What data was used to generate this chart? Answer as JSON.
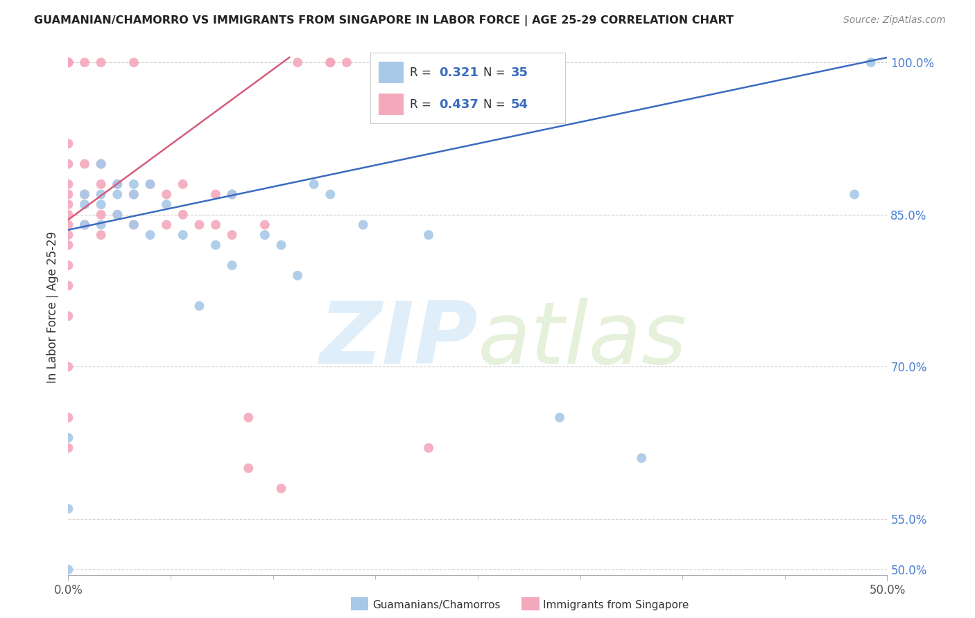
{
  "title": "GUAMANIAN/CHAMORRO VS IMMIGRANTS FROM SINGAPORE IN LABOR FORCE | AGE 25-29 CORRELATION CHART",
  "source": "Source: ZipAtlas.com",
  "ylabel": "In Labor Force | Age 25-29",
  "xmin": 0.0,
  "xmax": 0.5,
  "ymin": 0.495,
  "ymax": 1.022,
  "ytick_positions": [
    0.5,
    0.55,
    0.7,
    0.85,
    1.0
  ],
  "ytick_labels": [
    "50.0%",
    "55.0%",
    "70.0%",
    "85.0%",
    "100.0%"
  ],
  "xtick_positions": [
    0.0,
    0.5
  ],
  "xtick_labels": [
    "0.0%",
    "50.0%"
  ],
  "blue_R": 0.321,
  "blue_N": 35,
  "pink_R": 0.437,
  "pink_N": 54,
  "blue_color": "#a8c8e8",
  "pink_color": "#f4a8bc",
  "blue_line_color": "#3a6bbf",
  "pink_line_color": "#d45c7a",
  "legend_label_blue": "Guamanians/Chamorros",
  "legend_label_pink": "Immigrants from Singapore",
  "background_color": "#ffffff",
  "grid_color": "#cccccc",
  "blue_scatter_x": [
    0.0,
    0.0,
    0.0,
    0.01,
    0.01,
    0.01,
    0.02,
    0.02,
    0.02,
    0.02,
    0.03,
    0.03,
    0.03,
    0.04,
    0.04,
    0.04,
    0.05,
    0.05,
    0.06,
    0.07,
    0.08,
    0.09,
    0.1,
    0.1,
    0.12,
    0.13,
    0.14,
    0.15,
    0.16,
    0.18,
    0.22,
    0.3,
    0.35,
    0.48,
    0.49
  ],
  "blue_scatter_y": [
    0.5,
    0.56,
    0.63,
    0.84,
    0.86,
    0.87,
    0.84,
    0.86,
    0.87,
    0.9,
    0.85,
    0.87,
    0.88,
    0.84,
    0.87,
    0.88,
    0.83,
    0.88,
    0.86,
    0.83,
    0.76,
    0.82,
    0.8,
    0.87,
    0.83,
    0.82,
    0.79,
    0.88,
    0.87,
    0.84,
    0.83,
    0.65,
    0.61,
    0.87,
    1.0
  ],
  "pink_scatter_x": [
    0.0,
    0.0,
    0.0,
    0.0,
    0.0,
    0.0,
    0.0,
    0.0,
    0.0,
    0.0,
    0.0,
    0.0,
    0.0,
    0.0,
    0.0,
    0.0,
    0.0,
    0.0,
    0.0,
    0.0,
    0.01,
    0.01,
    0.01,
    0.01,
    0.02,
    0.02,
    0.02,
    0.02,
    0.02,
    0.03,
    0.03,
    0.04,
    0.04,
    0.04,
    0.05,
    0.06,
    0.06,
    0.07,
    0.07,
    0.08,
    0.09,
    0.09,
    0.1,
    0.1,
    0.11,
    0.11,
    0.12,
    0.13,
    0.14,
    0.16,
    0.16,
    0.17,
    0.2,
    0.22
  ],
  "pink_scatter_y": [
    0.62,
    0.65,
    0.7,
    0.75,
    0.78,
    0.8,
    0.82,
    0.83,
    0.84,
    0.85,
    0.86,
    0.87,
    0.88,
    0.9,
    0.92,
    1.0,
    1.0,
    1.0,
    1.0,
    1.0,
    0.84,
    0.87,
    0.9,
    1.0,
    0.83,
    0.85,
    0.88,
    0.9,
    1.0,
    0.85,
    0.88,
    0.84,
    0.87,
    1.0,
    0.88,
    0.84,
    0.87,
    0.85,
    0.88,
    0.84,
    0.84,
    0.87,
    0.83,
    0.87,
    0.65,
    0.6,
    0.84,
    0.58,
    1.0,
    1.0,
    1.0,
    1.0,
    1.0,
    0.62
  ],
  "blue_line_x0": 0.0,
  "blue_line_x1": 0.5,
  "blue_line_y0": 0.835,
  "blue_line_y1": 1.005,
  "pink_line_x0": 0.0,
  "pink_line_x1": 0.135,
  "pink_line_y0": 0.845,
  "pink_line_y1": 1.005
}
